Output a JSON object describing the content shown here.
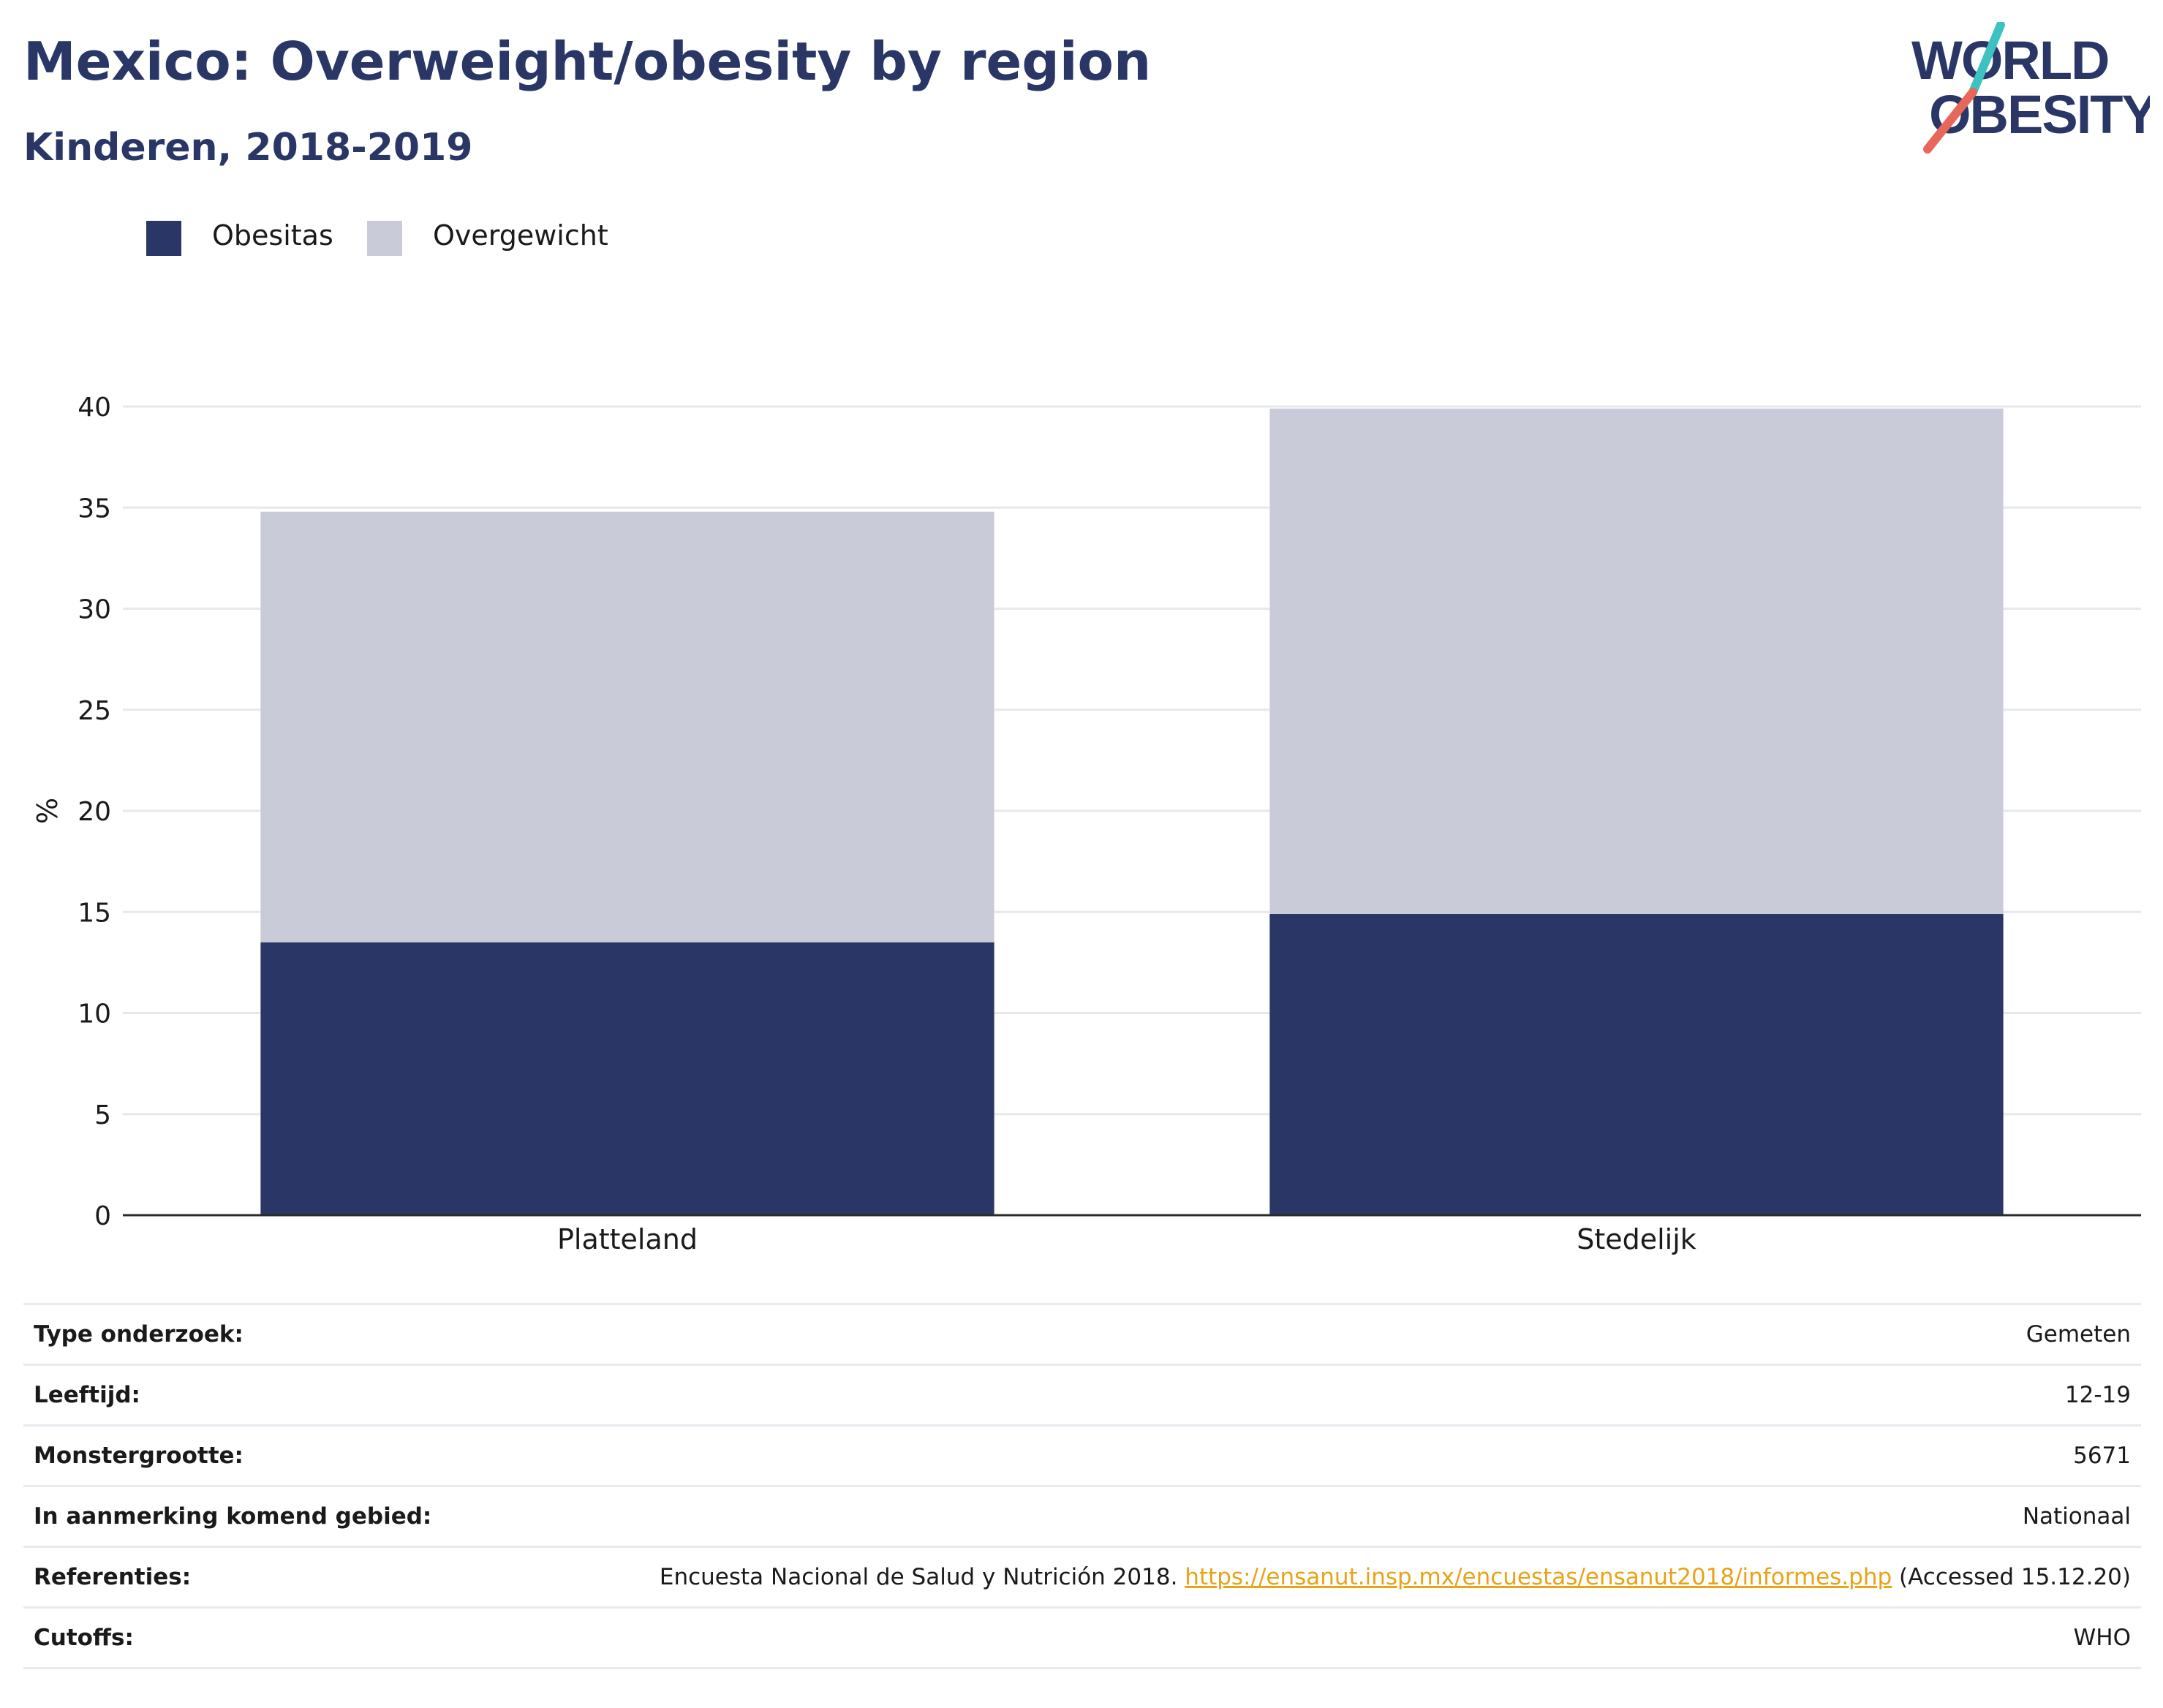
{
  "header": {
    "title": "Mexico: Overweight/obesity by region",
    "subtitle": "Kinderen, 2018-2019"
  },
  "logo": {
    "line1": "WORLD",
    "line2": "OBESITY",
    "text_color": "#2a3766",
    "accent_teal": "#3ec1c1",
    "accent_red": "#e8675a"
  },
  "legend": [
    {
      "label": "Obesitas",
      "color": "#2a3766"
    },
    {
      "label": "Overgewicht",
      "color": "#c9ccd8"
    }
  ],
  "chart_data": {
    "type": "bar",
    "stacked": true,
    "categories": [
      "Platteland",
      "Stedelijk"
    ],
    "series": [
      {
        "name": "Obesitas",
        "color": "#2a3766",
        "values": [
          13.5,
          14.9
        ]
      },
      {
        "name": "Overgewicht",
        "color": "#c9ccd8",
        "values": [
          21.3,
          25.0
        ]
      }
    ],
    "ylabel": "%",
    "xlabel": "",
    "ylim": [
      0,
      40
    ],
    "yticks": [
      0,
      5,
      10,
      15,
      20,
      25,
      30,
      35,
      40
    ],
    "grid": true,
    "legend_position": "top-left"
  },
  "info": {
    "rows": [
      {
        "label": "Type onderzoek:",
        "value": "Gemeten"
      },
      {
        "label": "Leeftijd:",
        "value": "12-19"
      },
      {
        "label": "Monstergrootte:",
        "value": "5671"
      },
      {
        "label": "In aanmerking komend gebied:",
        "value": "Nationaal"
      },
      {
        "label": "Cutoffs:",
        "value": "WHO"
      }
    ],
    "references": {
      "label": "Referenties:",
      "text_before": "Encuesta Nacional de Salud y Nutrición 2018.",
      "link": "https://ensanut.insp.mx/encuestas/ensanut2018/informes.php",
      "text_after": "(Accessed 15.12.20)"
    }
  }
}
